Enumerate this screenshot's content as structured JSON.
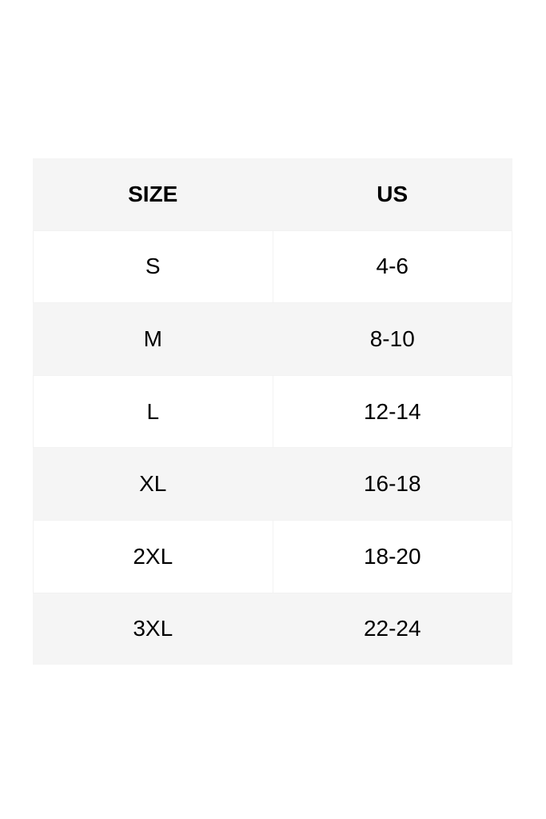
{
  "table": {
    "headers": [
      "SIZE",
      "US"
    ],
    "rows": [
      [
        "S",
        "4-6"
      ],
      [
        "M",
        "8-10"
      ],
      [
        "L",
        "12-14"
      ],
      [
        "XL",
        "16-18"
      ],
      [
        "2XL",
        "18-20"
      ],
      [
        "3XL",
        "22-24"
      ]
    ]
  },
  "colors": {
    "header_bg": "#f5f5f5",
    "alt_row_bg": "#f5f5f5",
    "row_bg": "#ffffff",
    "text": "#000000"
  }
}
